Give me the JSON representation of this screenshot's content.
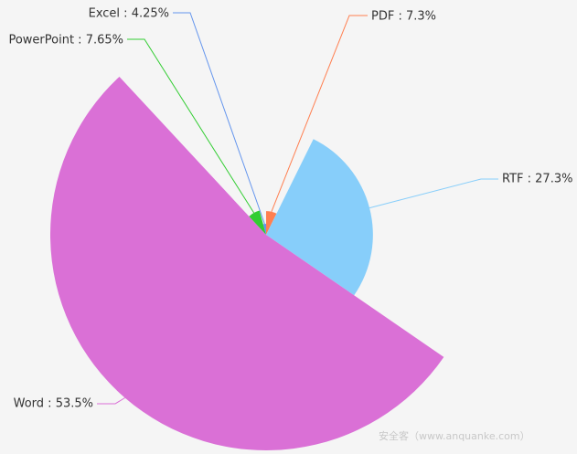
{
  "chart_data": {
    "type": "pie",
    "variant": "rose",
    "series": [
      {
        "name": "PDF",
        "value": 7.3,
        "label": "PDF : 7.3%",
        "color": "#ff7f50"
      },
      {
        "name": "RTF",
        "value": 27.3,
        "label": "RTF : 27.3%",
        "color": "#87cefa"
      },
      {
        "name": "Word",
        "value": 53.5,
        "label": "Word : 53.5%",
        "color": "#da70d6"
      },
      {
        "name": "PowerPoint",
        "value": 7.65,
        "label": "PowerPoint : 7.65%",
        "color": "#32cd32"
      },
      {
        "name": "Excel",
        "value": 4.25,
        "label": "Excel : 4.25%",
        "color": "#6495ed"
      }
    ]
  },
  "watermark": "安全客（www.anquanke.com）"
}
